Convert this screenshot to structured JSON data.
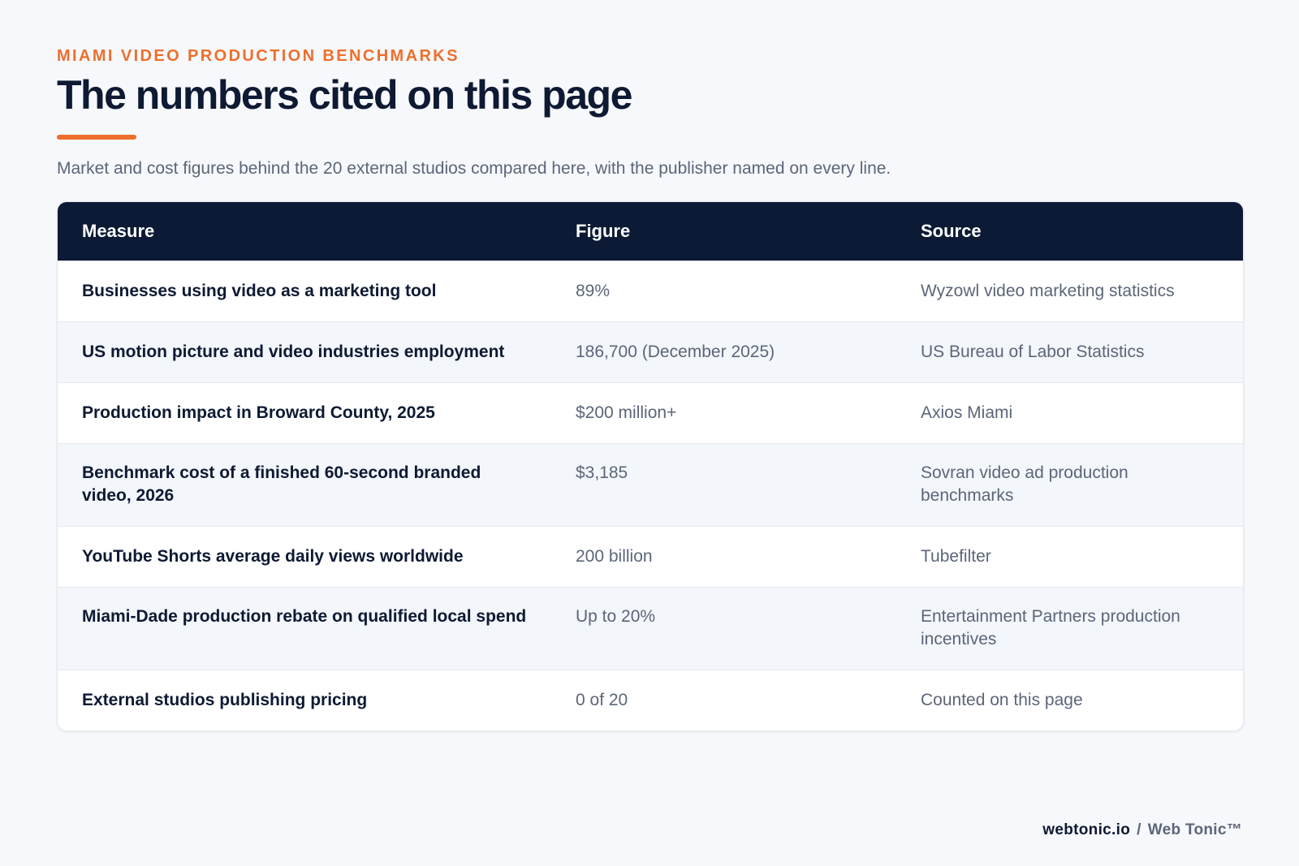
{
  "header": {
    "eyebrow": "MIAMI VIDEO PRODUCTION BENCHMARKS",
    "title": "The numbers cited on this page",
    "subtitle": "Market and cost figures behind the 20 external studios compared here, with the publisher named on every line."
  },
  "table": {
    "columns": [
      "Measure",
      "Figure",
      "Source"
    ],
    "rows": [
      {
        "measure": "Businesses using video as a marketing tool",
        "figure": "89%",
        "source": "Wyzowl video marketing statistics"
      },
      {
        "measure": "US motion picture and video industries employment",
        "figure": "186,700 (December 2025)",
        "source": "US Bureau of Labor Statistics"
      },
      {
        "measure": "Production impact in Broward County, 2025",
        "figure": "$200 million+",
        "source": "Axios Miami"
      },
      {
        "measure": "Benchmark cost of a finished 60-second branded video, 2026",
        "figure": "$3,185",
        "source": "Sovran video ad production benchmarks"
      },
      {
        "measure": "YouTube Shorts average daily views worldwide",
        "figure": "200 billion",
        "source": "Tubefilter"
      },
      {
        "measure": "Miami-Dade production rebate on qualified local spend",
        "figure": "Up to 20%",
        "source": "Entertainment Partners production incentives"
      },
      {
        "measure": "External studios publishing pricing",
        "figure": "0 of 20",
        "source": "Counted on this page"
      }
    ]
  },
  "footer": {
    "domain": "webtonic.io",
    "separator": "/",
    "brand": "Web Tonic™"
  },
  "colors": {
    "accent": "#ee6f2d",
    "header_bg": "#0c1a35",
    "page_bg": "#f6f8fb"
  }
}
